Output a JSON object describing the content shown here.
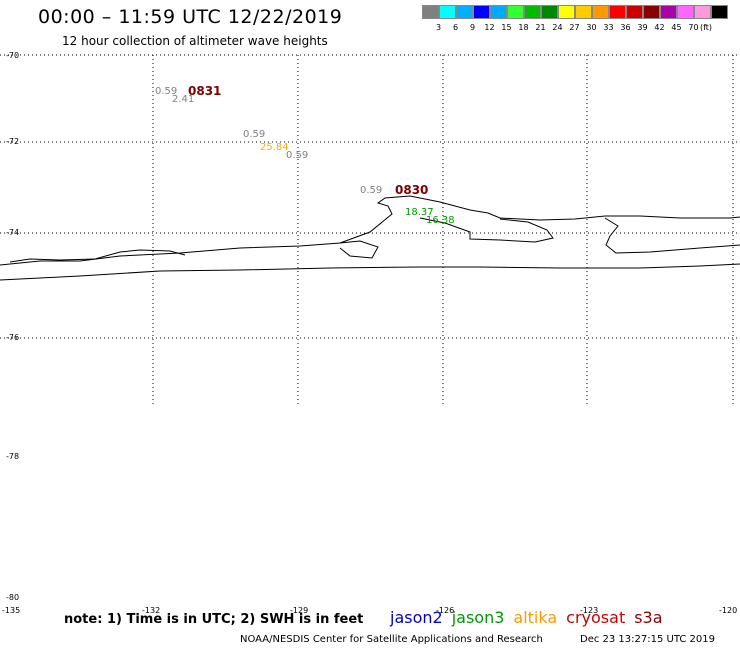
{
  "header": {
    "title": "00:00 – 11:59 UTC 12/22/2019",
    "subtitle": "12 hour collection of altimeter wave heights"
  },
  "legend": {
    "colors": [
      "#808080",
      "#00ffff",
      "#00b0ff",
      "#0000ff",
      "#00aaff",
      "#33ff33",
      "#00bb00",
      "#008800",
      "#ffff00",
      "#ffcc00",
      "#ff9900",
      "#ff0000",
      "#cc0000",
      "#880000",
      "#aa00aa",
      "#ff66ff",
      "#ff99dd",
      "#000000"
    ],
    "labels": [
      "3",
      "6",
      "9",
      "12",
      "15",
      "18",
      "21",
      "24",
      "27",
      "30",
      "33",
      "36",
      "39",
      "42",
      "45",
      "70"
    ],
    "unit": "(ft)"
  },
  "axes": {
    "lat_labels": [
      "-70",
      "-72",
      "-74",
      "-76",
      "-78",
      "-80"
    ],
    "lon_labels": [
      "-135",
      "-132",
      "-129",
      "-126",
      "-123",
      "-120"
    ]
  },
  "observations": [
    {
      "value": "0.59",
      "color": "#808080"
    },
    {
      "value": "2.41",
      "color": "#808080"
    },
    {
      "value": "0.59",
      "color": "#808080"
    },
    {
      "value": "25.84",
      "color": "#ffaa00"
    },
    {
      "value": "0.59",
      "color": "#808080"
    },
    {
      "value": "0.59",
      "color": "#808080"
    },
    {
      "value": "18.37",
      "color": "#009900"
    },
    {
      "value": "16.38",
      "color": "#009900"
    }
  ],
  "pass_times": [
    "0831",
    "0830"
  ],
  "footer": {
    "note": "note: 1) Time is in UTC; 2) SWH is in feet",
    "satellites": [
      {
        "name": "jason2",
        "color": "#0000cc"
      },
      {
        "name": "jason3",
        "color": "#009900"
      },
      {
        "name": "altika",
        "color": "#ff9900"
      },
      {
        "name": "cryosat",
        "color": "#cc0000"
      },
      {
        "name": "s3a",
        "color": "#880000"
      }
    ],
    "credit": "NOAA/NESDIS Center for Satellite Applications and Research",
    "timestamp": "Dec 23 13:27:15 UTC 2019"
  }
}
